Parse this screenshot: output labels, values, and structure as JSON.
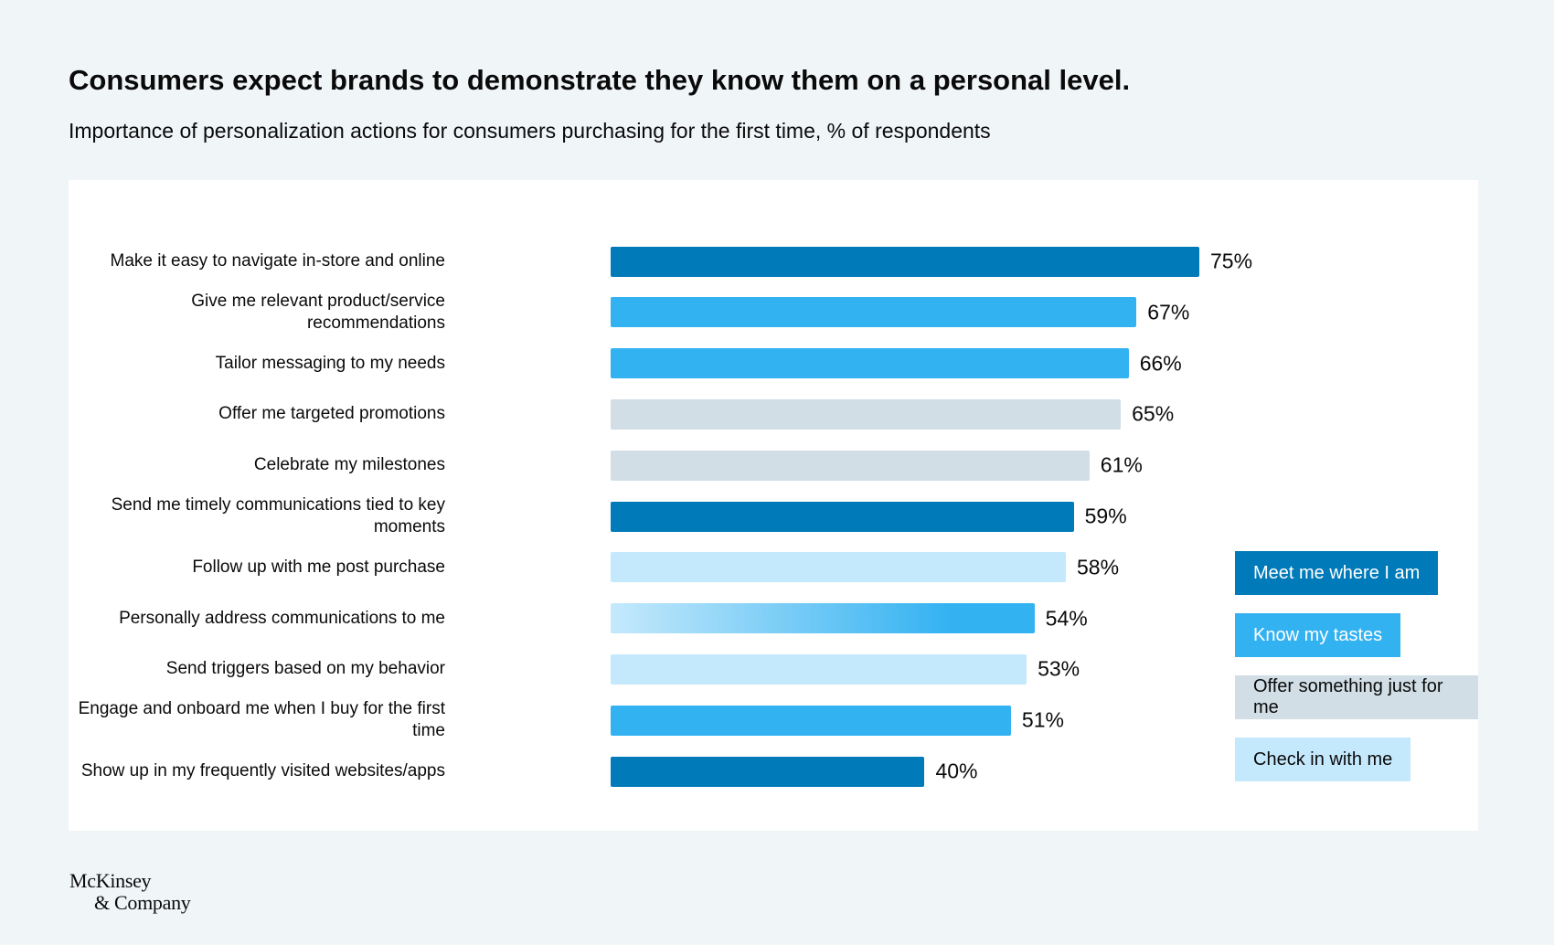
{
  "header": {
    "title": "Consumers expect brands to demonstrate they know them on a personal level.",
    "subtitle": "Importance of personalization actions for consumers purchasing for the first time, % of respondents"
  },
  "colors": {
    "meet": "#007ab8",
    "know": "#33b2f1",
    "offer": "#d1dee5",
    "check": "#c5e9fc",
    "background": "#f0f5f8"
  },
  "chart_data": {
    "type": "bar",
    "orientation": "horizontal",
    "title": "Consumers expect brands to demonstrate they know them on a personal level.",
    "subtitle": "Importance of personalization actions for consumers purchasing for the first time, % of respondents",
    "xlim": [
      0,
      100
    ],
    "categories": [
      "Make it easy to navigate in-store and online",
      "Give me relevant product/service recommendations",
      "Tailor messaging to my needs",
      "Offer me targeted promotions",
      "Celebrate my milestones",
      "Send me timely communications tied to key moments",
      "Follow up with me post purchase",
      "Personally address communications to me",
      "Send triggers based on my behavior",
      "Engage and onboard me when I buy for the first time",
      "Show up in my frequently visited websites/apps"
    ],
    "values": [
      75,
      67,
      66,
      65,
      61,
      59,
      58,
      54,
      53,
      51,
      40
    ],
    "value_labels": [
      "75%",
      "67%",
      "66%",
      "65%",
      "61%",
      "59%",
      "58%",
      "54%",
      "53%",
      "51%",
      "40%"
    ],
    "groups": [
      "meet",
      "know",
      "know",
      "offer",
      "offer",
      "meet",
      "check",
      "know",
      "check",
      "know",
      "meet"
    ],
    "legend": [
      {
        "key": "meet",
        "label": "Meet me where I am"
      },
      {
        "key": "know",
        "label": "Know my tastes"
      },
      {
        "key": "offer",
        "label": "Offer something just for me"
      },
      {
        "key": "check",
        "label": "Check in with me"
      }
    ],
    "legend_position": "right"
  },
  "logo": {
    "line1": "McKinsey",
    "line2": "& Company"
  }
}
